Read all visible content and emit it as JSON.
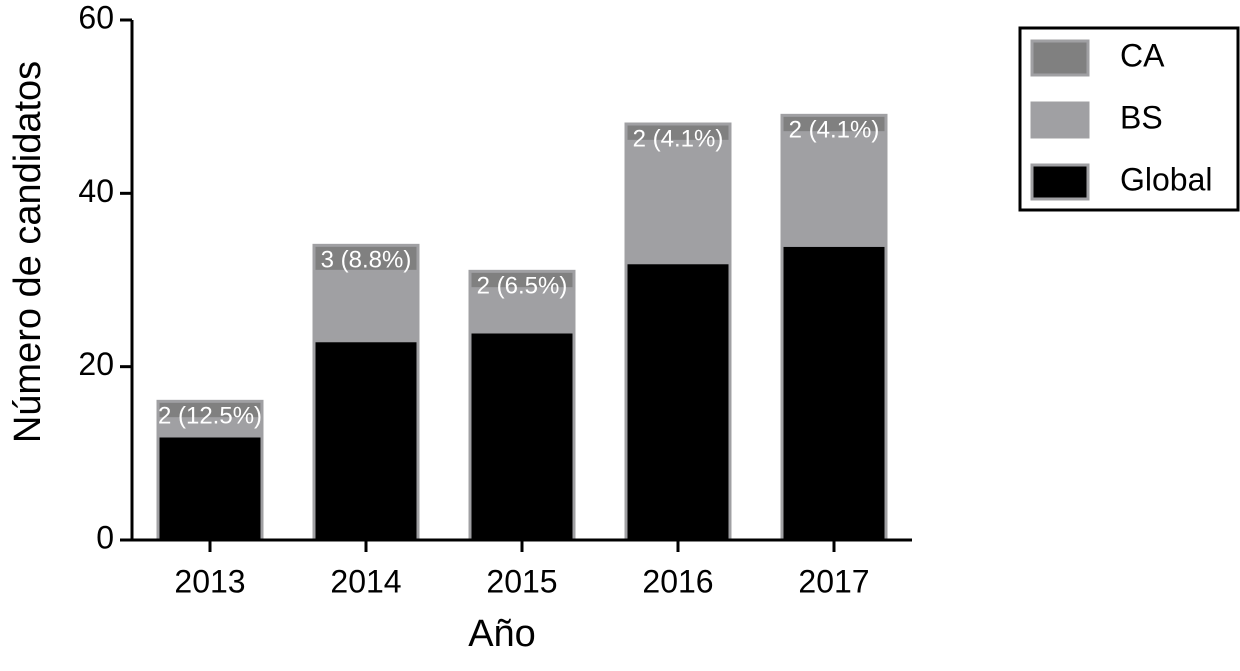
{
  "chart_data": {
    "type": "stacked-bar",
    "x_label": "Año",
    "y_label": "Número de candidatos",
    "categories": [
      "2013",
      "2014",
      "2015",
      "2016",
      "2017"
    ],
    "series": [
      {
        "name": "Global",
        "color": "#000000",
        "values": [
          12,
          23,
          24,
          32,
          34
        ]
      },
      {
        "name": "BS",
        "color": "#a0a0a3",
        "values": [
          2,
          8,
          5,
          14,
          13
        ]
      },
      {
        "name": "CA",
        "color": "#808080",
        "values": [
          2,
          3,
          2,
          2,
          2
        ],
        "value_labels": [
          "2 (12.5%)",
          "3 (8.8%)",
          "2 (6.5%)",
          "2 (4.1%)",
          "2 (4.1%)"
        ]
      }
    ],
    "ylim": [
      0,
      60
    ],
    "yticks": [
      0,
      20,
      40,
      60
    ],
    "legend": "upper right"
  }
}
